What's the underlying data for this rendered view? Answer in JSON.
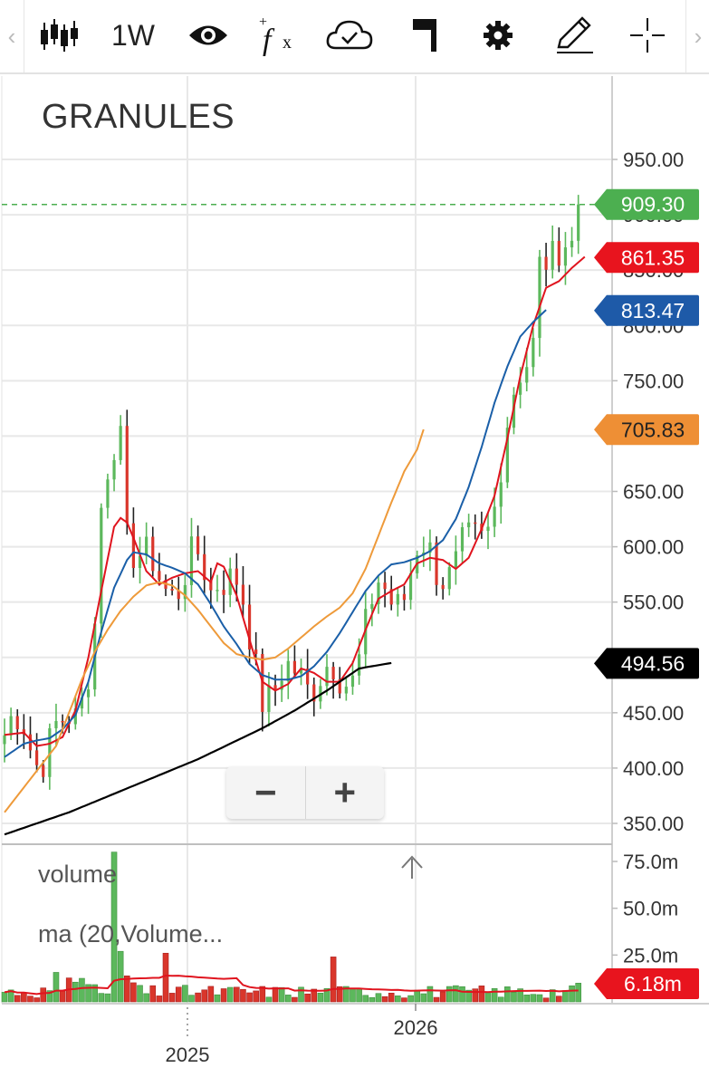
{
  "toolbar": {
    "interval": "1W",
    "icons": [
      "scroll-left-icon",
      "candlestick-icon",
      "interval-selector",
      "eye-icon",
      "fx-indicator-icon",
      "cloud-save-icon",
      "flag-icon",
      "gear-icon",
      "pencil-icon",
      "crosshair-icon",
      "scroll-right-icon"
    ]
  },
  "symbol": "GRANULES",
  "volume_legend": "volume",
  "volume_ma_legend": "ma (20,Volume...",
  "colors": {
    "up": "#5cb85c",
    "down": "#d9362b",
    "ema_red": "#e0141e",
    "ema_blue": "#1a5fa8",
    "ema_orange": "#ee9a3a",
    "sma_black": "#000000",
    "last_price": "#4caf50",
    "grid": "#e8e8e8"
  },
  "chart_data": [
    {
      "type": "line",
      "title": "GRANULES",
      "interval": "1W",
      "y_axis": {
        "ticks": [
          "950.00",
          "900.00",
          "850.00",
          "800.00",
          "750.00",
          "700.00",
          "650.00",
          "600.00",
          "550.00",
          "500.00",
          "450.00",
          "400.00",
          "350.00"
        ],
        "ylim": [
          340,
          965
        ],
        "side": "right"
      },
      "x_axis": {
        "ticks": [
          "2025",
          "2026"
        ]
      },
      "grid": true,
      "price_labels": [
        {
          "value": "909.30",
          "color": "#4caf50",
          "text_color": "#ffffff",
          "series": "last-price"
        },
        {
          "value": "861.35",
          "color": "#e8141e",
          "text_color": "#ffffff",
          "series": "ema-red"
        },
        {
          "value": "813.47",
          "color": "#1e5aa8",
          "text_color": "#ffffff",
          "series": "ema-blue"
        },
        {
          "value": "705.83",
          "color": "#ee8f35",
          "text_color": "#222222",
          "series": "ema-orange"
        },
        {
          "value": "494.56",
          "color": "#000000",
          "text_color": "#ffffff",
          "series": "sma-black"
        }
      ],
      "series": [
        {
          "color": "#e0141e",
          "values": [
            [
              0,
              430
            ],
            [
              3,
              432
            ],
            [
              5,
              420
            ],
            [
              7,
              422
            ],
            [
              9,
              428
            ],
            [
              11,
              452
            ],
            [
              13,
              500
            ],
            [
              15,
              560
            ],
            [
              17,
              618
            ],
            [
              18,
              626
            ],
            [
              19,
              622
            ],
            [
              20,
              608
            ],
            [
              22,
              578
            ],
            [
              24,
              566
            ],
            [
              26,
              572
            ],
            [
              28,
              576
            ],
            [
              30,
              578
            ],
            [
              32,
              568
            ],
            [
              33,
              585
            ],
            [
              34,
              582
            ],
            [
              36,
              556
            ],
            [
              38,
              516
            ],
            [
              40,
              478
            ],
            [
              42,
              470
            ],
            [
              44,
              476
            ],
            [
              46,
              490
            ],
            [
              48,
              486
            ],
            [
              50,
              478
            ],
            [
              52,
              478
            ],
            [
              54,
              495
            ],
            [
              56,
              525
            ],
            [
              58,
              553
            ],
            [
              60,
              560
            ],
            [
              62,
              566
            ],
            [
              64,
              585
            ],
            [
              66,
              590
            ],
            [
              68,
              588
            ],
            [
              70,
              580
            ],
            [
              72,
              590
            ],
            [
              74,
              616
            ],
            [
              76,
              646
            ],
            [
              78,
              698
            ],
            [
              80,
              754
            ],
            [
              82,
              800
            ],
            [
              84,
              834
            ],
            [
              86,
              840
            ],
            [
              88,
              852
            ],
            [
              90,
              862
            ]
          ]
        },
        {
          "color": "#1a5fa8",
          "values": [
            [
              0,
              410
            ],
            [
              3,
              422
            ],
            [
              5,
              425
            ],
            [
              7,
              427
            ],
            [
              9,
              435
            ],
            [
              11,
              448
            ],
            [
              13,
              478
            ],
            [
              15,
              523
            ],
            [
              17,
              563
            ],
            [
              19,
              588
            ],
            [
              20,
              595
            ],
            [
              22,
              593
            ],
            [
              24,
              585
            ],
            [
              26,
              581
            ],
            [
              28,
              576
            ],
            [
              30,
              566
            ],
            [
              32,
              548
            ],
            [
              34,
              528
            ],
            [
              36,
              512
            ],
            [
              38,
              494
            ],
            [
              40,
              484
            ],
            [
              42,
              480
            ],
            [
              44,
              480
            ],
            [
              46,
              483
            ],
            [
              48,
              492
            ],
            [
              50,
              505
            ],
            [
              52,
              522
            ],
            [
              54,
              541
            ],
            [
              56,
              560
            ],
            [
              58,
              574
            ],
            [
              60,
              584
            ],
            [
              62,
              586
            ],
            [
              64,
              590
            ],
            [
              66,
              596
            ],
            [
              68,
              606
            ],
            [
              70,
              625
            ],
            [
              72,
              654
            ],
            [
              74,
              690
            ],
            [
              76,
              730
            ],
            [
              78,
              763
            ],
            [
              80,
              790
            ],
            [
              82,
              803
            ],
            [
              84,
              814
            ]
          ]
        },
        {
          "color": "#ee9a3a",
          "values": [
            [
              0,
              360
            ],
            [
              2,
              375
            ],
            [
              4,
              390
            ],
            [
              6,
              405
            ],
            [
              8,
              420
            ],
            [
              10,
              450
            ],
            [
              12,
              480
            ],
            [
              14,
              505
            ],
            [
              16,
              525
            ],
            [
              18,
              542
            ],
            [
              20,
              555
            ],
            [
              22,
              565
            ],
            [
              24,
              568
            ],
            [
              26,
              565
            ],
            [
              28,
              556
            ],
            [
              30,
              543
            ],
            [
              32,
              528
            ],
            [
              34,
              513
            ],
            [
              36,
              503
            ],
            [
              38,
              500
            ],
            [
              40,
              498
            ],
            [
              42,
              500
            ],
            [
              44,
              508
            ],
            [
              46,
              518
            ],
            [
              48,
              528
            ],
            [
              50,
              537
            ],
            [
              52,
              545
            ],
            [
              54,
              558
            ],
            [
              56,
              580
            ],
            [
              58,
              610
            ],
            [
              60,
              640
            ],
            [
              62,
              668
            ],
            [
              64,
              688
            ],
            [
              65,
              706
            ]
          ]
        },
        {
          "color": "#000000",
          "values": [
            [
              0,
              340
            ],
            [
              5,
              350
            ],
            [
              10,
              360
            ],
            [
              15,
              372
            ],
            [
              20,
              384
            ],
            [
              25,
              396
            ],
            [
              30,
              408
            ],
            [
              35,
              422
            ],
            [
              40,
              436
            ],
            [
              45,
              452
            ],
            [
              50,
              470
            ],
            [
              55,
              490
            ],
            [
              60,
              495
            ]
          ]
        }
      ]
    },
    {
      "type": "bar",
      "title": "volume",
      "y_axis": {
        "ticks": [
          "75.0m",
          "50.0m",
          "25.0m"
        ],
        "ylim": [
          0,
          80
        ]
      },
      "last_value_label": {
        "value": "6.18m",
        "color": "#e8141e",
        "text_color": "#ffffff"
      },
      "x_axis": {
        "ticks": [
          "2025",
          "2026"
        ]
      }
    }
  ]
}
